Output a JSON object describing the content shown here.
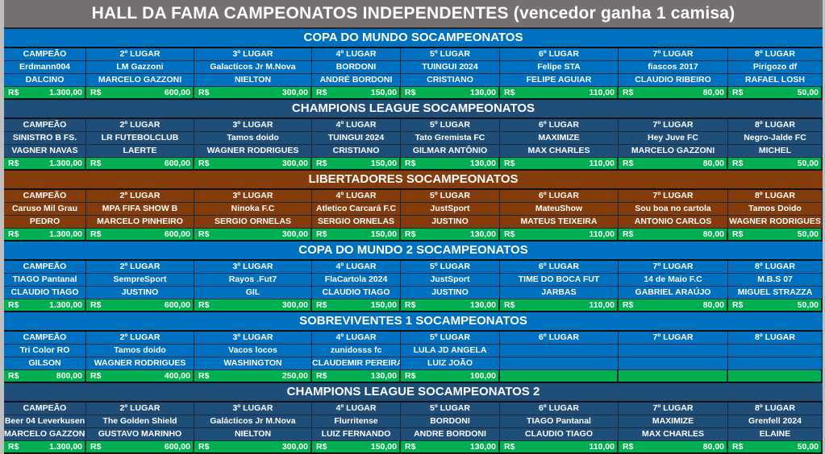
{
  "title": "HALL DA FAMA CAMPEONATOS INDEPENDENTES (vencedor ganha 1 camisa)",
  "colors": {
    "title_bg": "#767171",
    "prize_bg": "#00b050",
    "blue": "#0070c0",
    "dark_blue": "#1f4e79",
    "brown": "#843c0c"
  },
  "currency": "R$",
  "sections": [
    {
      "name": "COPA DO MUNDO SOCAMPEONATOS",
      "color": "#0070c0",
      "positions": [
        "CAMPEÃO",
        "2º LUGAR",
        "3º LUGAR",
        "4º LUGAR",
        "5º LUGAR",
        "6º LUGAR",
        "7º LUGAR",
        "8º LUGAR"
      ],
      "teams": [
        "Erdmann004",
        "LM Gazzoni",
        "Galacticos Jr M.Nova",
        "BORDONI",
        "TUINGUI 2024",
        "Felipe STA",
        "fiascos 2017",
        "Pirigozo df"
      ],
      "players": [
        "DALCINO",
        "MARCELO GAZZONI",
        "NIELTON",
        "ANDRÉ BORDONI",
        "CRISTIANO",
        "FELIPE AGUIAR",
        "CLAUDIO RIBEIRO",
        "RAFAEL LOSH"
      ],
      "prizes": [
        "1.300,00",
        "600,00",
        "300,00",
        "150,00",
        "130,00",
        "110,00",
        "80,00",
        "50,00"
      ]
    },
    {
      "name": "CHAMPIONS LEAGUE SOCAMPEONATOS",
      "color": "#1f4e79",
      "positions": [
        "CAMPEÃO",
        "2º LUGAR",
        "3º LUGAR",
        "4º LUGAR",
        "5º LUGAR",
        "6º LUGAR",
        "7º LUGAR",
        "8º LUGAR"
      ],
      "teams": [
        "SINISTRO B FS.",
        "LR FUTEBOLCLUB",
        "Tamos doido",
        "TUINGUI 2024",
        "Tato Gremista FC",
        "MAXIMIZE",
        "Hey Juve FC",
        "Negro-Jalde FC"
      ],
      "players": [
        "VAGNER NAVAS",
        "LAERTE",
        "WAGNER RODRIGUES",
        "CRISTIANO",
        "GILMAR ANTÔNIO",
        "MAX CHARLES",
        "MARCELO GAZZONI",
        "MICHEL"
      ],
      "prizes": [
        "1.300,00",
        "600,00",
        "300,00",
        "150,00",
        "130,00",
        "110,00",
        "80,00",
        "50,00"
      ]
    },
    {
      "name": "LIBERTADORES SOCAMPEONATOS",
      "color": "#843c0c",
      "positions": [
        "CAMPEÃO",
        "2º LUGAR",
        "3º LUGAR",
        "4º LUGAR",
        "5º LUGAR",
        "6º LUGAR",
        "7º LUGAR",
        "8º LUGAR"
      ],
      "teams": [
        "Caruso Mil Grau",
        "MPA FIFA SHOW B",
        "Ninoka F.C",
        "Atletico Carcará F.C",
        "JustSport",
        "MateuShow",
        "Sou boa no cartola",
        "Tamos Doido"
      ],
      "players": [
        "PEDRO",
        "MARCELO PINHEIRO",
        "SERGIO ORNELAS",
        "SERGIO ORNELAS",
        "JUSTINO",
        "MATEUS TEIXEIRA",
        "ANTONIO CARLOS",
        "WAGNER RODRIGUES"
      ],
      "prizes": [
        "1.300,00",
        "600,00",
        "300,00",
        "150,00",
        "130,00",
        "110,00",
        "80,00",
        "50,00"
      ]
    },
    {
      "name": "COPA DO MUNDO 2 SOCAMPEONATOS",
      "color": "#0070c0",
      "positions": [
        "CAMPEÃO",
        "2º LUGAR",
        "3º LUGAR",
        "4º LUGAR",
        "5º LUGAR",
        "6º LUGAR",
        "7º LUGAR",
        "8º LUGAR"
      ],
      "teams": [
        "TIAGO Pantanal",
        "SempreSport",
        "Rayos .Fut7",
        "FlaCartola 2024",
        "JustSport",
        "TIME DO BOCA FUT",
        "14 de Maio F.C",
        "M.B.S 07"
      ],
      "players": [
        "CLAUDIO TIAGO",
        "JUSTINO",
        "GIL",
        "CLAUDIO TIAGO",
        "JUSTINO",
        "JARBAS",
        "GABRIEL ARAÚJO",
        "MIGUEL STRAZZA"
      ],
      "prizes": [
        "1.300,00",
        "600,00",
        "300,00",
        "150,00",
        "130,00",
        "110,00",
        "80,00",
        "50,00"
      ]
    },
    {
      "name": "SOBREVIVENTES 1 SOCAMPEONATOS",
      "color": "#0070c0",
      "positions": [
        "CAMPEÃO",
        "2º LUGAR",
        "3º LUGAR",
        "4º LUGAR",
        "5º LUGAR",
        "6º LUGAR",
        "7º LUGAR",
        "8º LUGAR"
      ],
      "teams": [
        "Tri Color RO",
        "Tamos doido",
        "Vacos locos",
        "zunidosss fc",
        "LULA JD ANGELA",
        "",
        "",
        ""
      ],
      "players": [
        "GILSON",
        "WAGNER RODRIGUES",
        "WASHINGTON",
        "CLAUDEMIR PEREIRA",
        "LUIZ JOÃO",
        "",
        "",
        ""
      ],
      "prizes": [
        "800,00",
        "400,00",
        "250,00",
        "130,00",
        "100,00",
        "",
        "",
        ""
      ]
    },
    {
      "name": "CHAMPIONS LEAGUE SOCAMPEONATOS 2",
      "color": "#1f4e79",
      "positions": [
        "CAMPEÃO",
        "2º LUGAR",
        "3º LUGAR",
        "4º LUGAR",
        "5º LUGAR",
        "6º LUGAR",
        "7º LUGAR",
        "8º LUGAR"
      ],
      "teams": [
        "Beer 04 Leverkusen",
        "The Golden Shield",
        "Galácticos Jr M.Nova",
        "Flurritense",
        "BORDONI",
        "TIAGO Pantanal",
        "MAXIMIZE",
        "Grenfell 2024"
      ],
      "players": [
        "MARCELO GAZZONI",
        "GUSTAVO MARINHO",
        "NIELTON",
        "LUIZ FERNANDO",
        "ANDRE BORDONI",
        "CLAUDIO TIAGO",
        "MAX CHARLES",
        "ELAINE"
      ],
      "prizes": [
        "1.300,00",
        "600,00",
        "300,00",
        "150,00",
        "130,00",
        "110,00",
        "80,00",
        "50,00"
      ]
    }
  ]
}
